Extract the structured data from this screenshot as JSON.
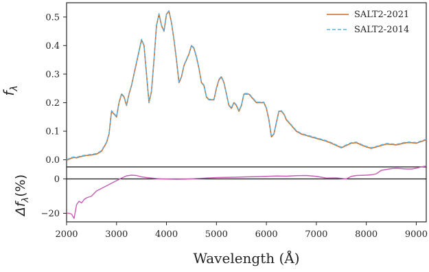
{
  "chart_data": [
    {
      "type": "line",
      "panel": "top",
      "ylabel_main": "f",
      "ylabel_sub": "λ",
      "xlim": [
        2000,
        9200
      ],
      "ylim": [
        -0.025,
        0.55
      ],
      "y_ticks": [
        0.0,
        0.1,
        0.2,
        0.3,
        0.4,
        0.5
      ],
      "y_tick_labels": [
        "0.0",
        "0.1",
        "0.2",
        "0.3",
        "0.4",
        "0.5"
      ],
      "legend_position": "top-right",
      "grid": false,
      "series": [
        {
          "name": "SALT2-2021",
          "color": "#d2691e",
          "style": "solid",
          "x": [
            2000,
            2050,
            2100,
            2150,
            2200,
            2300,
            2400,
            2500,
            2600,
            2700,
            2800,
            2850,
            2900,
            2950,
            3000,
            3050,
            3100,
            3150,
            3200,
            3250,
            3300,
            3350,
            3400,
            3450,
            3500,
            3550,
            3600,
            3650,
            3700,
            3750,
            3800,
            3850,
            3900,
            3950,
            4000,
            4050,
            4100,
            4150,
            4200,
            4250,
            4300,
            4350,
            4400,
            4450,
            4500,
            4550,
            4600,
            4650,
            4700,
            4750,
            4800,
            4850,
            4900,
            4950,
            5000,
            5050,
            5100,
            5150,
            5200,
            5250,
            5300,
            5350,
            5400,
            5450,
            5500,
            5550,
            5600,
            5650,
            5700,
            5750,
            5800,
            5850,
            5900,
            5950,
            6000,
            6050,
            6100,
            6150,
            6200,
            6250,
            6300,
            6350,
            6400,
            6450,
            6500,
            6600,
            6700,
            6800,
            6900,
            7000,
            7100,
            7200,
            7300,
            7400,
            7500,
            7600,
            7700,
            7800,
            7900,
            8000,
            8100,
            8200,
            8300,
            8400,
            8500,
            8600,
            8700,
            8800,
            8900,
            9000,
            9100,
            9200
          ],
          "y": [
            -0.002,
            0.002,
            0.006,
            0.008,
            0.007,
            0.012,
            0.015,
            0.017,
            0.02,
            0.03,
            0.06,
            0.09,
            0.17,
            0.16,
            0.15,
            0.2,
            0.23,
            0.22,
            0.19,
            0.23,
            0.26,
            0.3,
            0.34,
            0.38,
            0.42,
            0.4,
            0.3,
            0.2,
            0.24,
            0.35,
            0.47,
            0.51,
            0.47,
            0.45,
            0.51,
            0.52,
            0.48,
            0.42,
            0.35,
            0.27,
            0.29,
            0.33,
            0.35,
            0.37,
            0.4,
            0.39,
            0.36,
            0.32,
            0.27,
            0.26,
            0.22,
            0.21,
            0.21,
            0.21,
            0.25,
            0.28,
            0.29,
            0.27,
            0.23,
            0.19,
            0.18,
            0.2,
            0.19,
            0.17,
            0.19,
            0.23,
            0.23,
            0.23,
            0.22,
            0.21,
            0.2,
            0.2,
            0.2,
            0.2,
            0.18,
            0.14,
            0.08,
            0.09,
            0.13,
            0.17,
            0.17,
            0.16,
            0.14,
            0.13,
            0.12,
            0.1,
            0.09,
            0.085,
            0.08,
            0.075,
            0.07,
            0.065,
            0.058,
            0.05,
            0.042,
            0.05,
            0.058,
            0.06,
            0.052,
            0.045,
            0.04,
            0.045,
            0.05,
            0.055,
            0.054,
            0.052,
            0.056,
            0.06,
            0.06,
            0.058,
            0.064,
            0.07
          ]
        },
        {
          "name": "SALT2-2014",
          "color": "#5ab4e6",
          "style": "dashed",
          "offset": 0.002
        }
      ],
      "legend": {
        "entries": [
          "SALT2-2021",
          "SALT2-2014"
        ]
      }
    },
    {
      "type": "line",
      "panel": "bottom",
      "ylabel_prefix": "Δf",
      "ylabel_sub": "λ",
      "ylabel_suffix": "(%)",
      "xlabel": "Wavelength (Å)",
      "xlim": [
        2000,
        9200
      ],
      "ylim": [
        -25,
        7
      ],
      "x_ticks": [
        2000,
        3000,
        4000,
        5000,
        6000,
        7000,
        8000,
        9000
      ],
      "x_tick_labels": [
        "2000",
        "3000",
        "4000",
        "5000",
        "6000",
        "7000",
        "8000",
        "9000"
      ],
      "y_ticks": [
        0,
        -20
      ],
      "y_tick_labels": [
        "0",
        "−20"
      ],
      "zero_line": true,
      "series": [
        {
          "name": "",
          "color": "#c75bb6",
          "style": "solid",
          "x": [
            2000,
            2050,
            2100,
            2150,
            2200,
            2250,
            2300,
            2350,
            2400,
            2500,
            2600,
            2700,
            2800,
            2900,
            3000,
            3100,
            3200,
            3300,
            3400,
            3500,
            3600,
            3700,
            3800,
            3900,
            4000,
            4200,
            4400,
            4600,
            4800,
            5000,
            5200,
            5400,
            5600,
            5800,
            6000,
            6200,
            6400,
            6600,
            6800,
            7000,
            7200,
            7400,
            7600,
            7700,
            7800,
            7900,
            8000,
            8100,
            8200,
            8300,
            8400,
            8500,
            8600,
            8700,
            8800,
            8900,
            9000,
            9100,
            9200
          ],
          "y": [
            -20,
            -20,
            -20.5,
            -23,
            -15,
            -13,
            -14,
            -12,
            -11,
            -10,
            -7,
            -5.5,
            -4,
            -2.5,
            -1,
            0.5,
            1.8,
            2.2,
            2,
            1.2,
            0.8,
            0.5,
            0.2,
            0,
            -0.1,
            -0.2,
            -0.1,
            0.2,
            0.5,
            0.8,
            0.9,
            1,
            1.2,
            1.3,
            1.5,
            1.7,
            1.6,
            1.9,
            2,
            1.5,
            0.5,
            0.6,
            0,
            1.5,
            2,
            2.1,
            2.2,
            2.4,
            3,
            5,
            5.5,
            6,
            6.2,
            6,
            5.8,
            5.8,
            6.2,
            7,
            7.5
          ]
        }
      ]
    }
  ]
}
